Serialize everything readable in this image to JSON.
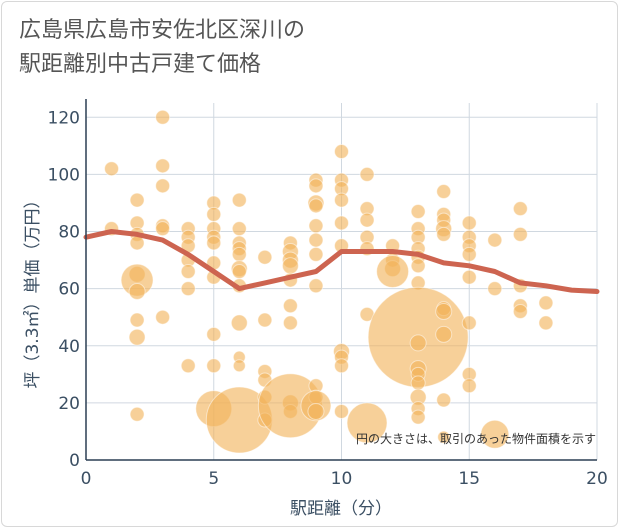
{
  "title_line1": "広島県広島市安佐北区深川の",
  "title_line2": "駅距離別中古戸建て価格",
  "chart_data": {
    "type": "scatter",
    "xlabel": "駅距離（分）",
    "ylabel": "坪（3.3㎡）単価（万円）",
    "xlim": [
      0,
      20
    ],
    "ylim": [
      0,
      125
    ],
    "xticks": [
      0,
      5,
      10,
      15,
      20
    ],
    "yticks": [
      0,
      20,
      40,
      60,
      80,
      100,
      120
    ],
    "annotation": "円の大きさは、取引のあった物件面積を示す",
    "colors": {
      "bubble": "#f2b35b",
      "trend": "#cd6450",
      "grid": "#d0d8e0"
    },
    "trend": {
      "x": [
        0,
        1,
        2,
        3,
        4,
        5,
        6,
        7,
        8,
        9,
        10,
        11,
        12,
        13,
        14,
        15,
        16,
        17,
        18,
        19,
        20
      ],
      "y": [
        78,
        80,
        79,
        77,
        72,
        66,
        60,
        62,
        64,
        66,
        73,
        73,
        73,
        72,
        69,
        68,
        66,
        62,
        61,
        59.5,
        59
      ]
    },
    "points": [
      {
        "x": 1,
        "y": 102,
        "r": 7
      },
      {
        "x": 1,
        "y": 81,
        "r": 7
      },
      {
        "x": 2,
        "y": 91,
        "r": 7
      },
      {
        "x": 2,
        "y": 83,
        "r": 7
      },
      {
        "x": 2,
        "y": 79,
        "r": 7
      },
      {
        "x": 2,
        "y": 76,
        "r": 7
      },
      {
        "x": 2,
        "y": 65,
        "r": 8
      },
      {
        "x": 2,
        "y": 63,
        "r": 16
      },
      {
        "x": 2,
        "y": 59,
        "r": 8
      },
      {
        "x": 2,
        "y": 49,
        "r": 7
      },
      {
        "x": 2,
        "y": 43,
        "r": 8
      },
      {
        "x": 2,
        "y": 16,
        "r": 7
      },
      {
        "x": 3,
        "y": 120,
        "r": 7
      },
      {
        "x": 3,
        "y": 103,
        "r": 7
      },
      {
        "x": 3,
        "y": 96,
        "r": 7
      },
      {
        "x": 3,
        "y": 82,
        "r": 7
      },
      {
        "x": 3,
        "y": 81,
        "r": 7
      },
      {
        "x": 3,
        "y": 50,
        "r": 7
      },
      {
        "x": 4,
        "y": 81,
        "r": 7
      },
      {
        "x": 4,
        "y": 78,
        "r": 7
      },
      {
        "x": 4,
        "y": 75,
        "r": 7
      },
      {
        "x": 4,
        "y": 70,
        "r": 7
      },
      {
        "x": 4,
        "y": 66,
        "r": 7
      },
      {
        "x": 4,
        "y": 60,
        "r": 7
      },
      {
        "x": 4,
        "y": 33,
        "r": 7
      },
      {
        "x": 5,
        "y": 90,
        "r": 7
      },
      {
        "x": 5,
        "y": 86,
        "r": 7
      },
      {
        "x": 5,
        "y": 81,
        "r": 7
      },
      {
        "x": 5,
        "y": 78,
        "r": 7
      },
      {
        "x": 5,
        "y": 76,
        "r": 7
      },
      {
        "x": 5,
        "y": 69,
        "r": 7
      },
      {
        "x": 5,
        "y": 64,
        "r": 7
      },
      {
        "x": 5,
        "y": 44,
        "r": 7
      },
      {
        "x": 5,
        "y": 33,
        "r": 7
      },
      {
        "x": 5,
        "y": 18,
        "r": 18
      },
      {
        "x": 6,
        "y": 91,
        "r": 7
      },
      {
        "x": 6,
        "y": 81,
        "r": 7
      },
      {
        "x": 6,
        "y": 76,
        "r": 7
      },
      {
        "x": 6,
        "y": 74,
        "r": 7
      },
      {
        "x": 6,
        "y": 72,
        "r": 7
      },
      {
        "x": 6,
        "y": 67,
        "r": 8
      },
      {
        "x": 6,
        "y": 66,
        "r": 7
      },
      {
        "x": 6,
        "y": 61,
        "r": 7
      },
      {
        "x": 6,
        "y": 48,
        "r": 8
      },
      {
        "x": 6,
        "y": 36,
        "r": 6
      },
      {
        "x": 6,
        "y": 33,
        "r": 6
      },
      {
        "x": 6,
        "y": 14,
        "r": 33
      },
      {
        "x": 7,
        "y": 71,
        "r": 7
      },
      {
        "x": 7,
        "y": 49,
        "r": 7
      },
      {
        "x": 7,
        "y": 31,
        "r": 7
      },
      {
        "x": 7,
        "y": 28,
        "r": 7
      },
      {
        "x": 7,
        "y": 22,
        "r": 7
      },
      {
        "x": 7,
        "y": 14,
        "r": 7
      },
      {
        "x": 8,
        "y": 76,
        "r": 7
      },
      {
        "x": 8,
        "y": 73,
        "r": 8
      },
      {
        "x": 8,
        "y": 70,
        "r": 8
      },
      {
        "x": 8,
        "y": 68,
        "r": 8
      },
      {
        "x": 8,
        "y": 63,
        "r": 7
      },
      {
        "x": 8,
        "y": 54,
        "r": 7
      },
      {
        "x": 8,
        "y": 48,
        "r": 7
      },
      {
        "x": 8,
        "y": 20,
        "r": 8
      },
      {
        "x": 8,
        "y": 17,
        "r": 7
      },
      {
        "x": 8,
        "y": 19,
        "r": 32
      },
      {
        "x": 9,
        "y": 98,
        "r": 7
      },
      {
        "x": 9,
        "y": 96,
        "r": 7
      },
      {
        "x": 9,
        "y": 90,
        "r": 8
      },
      {
        "x": 9,
        "y": 89,
        "r": 7
      },
      {
        "x": 9,
        "y": 82,
        "r": 7
      },
      {
        "x": 9,
        "y": 77,
        "r": 7
      },
      {
        "x": 9,
        "y": 72,
        "r": 7
      },
      {
        "x": 9,
        "y": 61,
        "r": 7
      },
      {
        "x": 9,
        "y": 26,
        "r": 7
      },
      {
        "x": 9,
        "y": 22,
        "r": 7
      },
      {
        "x": 9,
        "y": 19,
        "r": 15
      },
      {
        "x": 9,
        "y": 17,
        "r": 8
      },
      {
        "x": 10,
        "y": 108,
        "r": 7
      },
      {
        "x": 10,
        "y": 98,
        "r": 7
      },
      {
        "x": 10,
        "y": 95,
        "r": 7
      },
      {
        "x": 10,
        "y": 91,
        "r": 7
      },
      {
        "x": 10,
        "y": 83,
        "r": 7
      },
      {
        "x": 10,
        "y": 75,
        "r": 7
      },
      {
        "x": 10,
        "y": 38,
        "r": 8
      },
      {
        "x": 10,
        "y": 36,
        "r": 7
      },
      {
        "x": 10,
        "y": 33,
        "r": 7
      },
      {
        "x": 10,
        "y": 17,
        "r": 7
      },
      {
        "x": 11,
        "y": 100,
        "r": 7
      },
      {
        "x": 11,
        "y": 88,
        "r": 7
      },
      {
        "x": 11,
        "y": 84,
        "r": 7
      },
      {
        "x": 11,
        "y": 78,
        "r": 7
      },
      {
        "x": 11,
        "y": 74,
        "r": 7
      },
      {
        "x": 11,
        "y": 51,
        "r": 7
      },
      {
        "x": 11,
        "y": 13,
        "r": 20
      },
      {
        "x": 12,
        "y": 75,
        "r": 7
      },
      {
        "x": 12,
        "y": 70,
        "r": 7
      },
      {
        "x": 12,
        "y": 67,
        "r": 8
      },
      {
        "x": 12,
        "y": 66,
        "r": 16
      },
      {
        "x": 13,
        "y": 87,
        "r": 7
      },
      {
        "x": 13,
        "y": 81,
        "r": 7
      },
      {
        "x": 13,
        "y": 78,
        "r": 7
      },
      {
        "x": 13,
        "y": 74,
        "r": 7
      },
      {
        "x": 13,
        "y": 71,
        "r": 7
      },
      {
        "x": 13,
        "y": 68,
        "r": 7
      },
      {
        "x": 13,
        "y": 62,
        "r": 7
      },
      {
        "x": 13,
        "y": 43,
        "r": 50
      },
      {
        "x": 13,
        "y": 41,
        "r": 8
      },
      {
        "x": 13,
        "y": 32,
        "r": 8
      },
      {
        "x": 13,
        "y": 30,
        "r": 7
      },
      {
        "x": 13,
        "y": 27,
        "r": 7
      },
      {
        "x": 13,
        "y": 22,
        "r": 8
      },
      {
        "x": 13,
        "y": 18,
        "r": 7
      },
      {
        "x": 13,
        "y": 15,
        "r": 7
      },
      {
        "x": 14,
        "y": 94,
        "r": 7
      },
      {
        "x": 14,
        "y": 86,
        "r": 7
      },
      {
        "x": 14,
        "y": 84,
        "r": 7
      },
      {
        "x": 14,
        "y": 81,
        "r": 8
      },
      {
        "x": 14,
        "y": 79,
        "r": 7
      },
      {
        "x": 14,
        "y": 53,
        "r": 7
      },
      {
        "x": 14,
        "y": 52,
        "r": 8
      },
      {
        "x": 14,
        "y": 44,
        "r": 8
      },
      {
        "x": 14,
        "y": 21,
        "r": 7
      },
      {
        "x": 14,
        "y": 8,
        "r": 6
      },
      {
        "x": 15,
        "y": 83,
        "r": 7
      },
      {
        "x": 15,
        "y": 78,
        "r": 7
      },
      {
        "x": 15,
        "y": 75,
        "r": 7
      },
      {
        "x": 15,
        "y": 72,
        "r": 7
      },
      {
        "x": 15,
        "y": 64,
        "r": 7
      },
      {
        "x": 15,
        "y": 48,
        "r": 7
      },
      {
        "x": 15,
        "y": 30,
        "r": 7
      },
      {
        "x": 15,
        "y": 26,
        "r": 7
      },
      {
        "x": 16,
        "y": 77,
        "r": 7
      },
      {
        "x": 16,
        "y": 60,
        "r": 7
      },
      {
        "x": 16,
        "y": 9,
        "r": 14
      },
      {
        "x": 17,
        "y": 88,
        "r": 7
      },
      {
        "x": 17,
        "y": 79,
        "r": 7
      },
      {
        "x": 17,
        "y": 61,
        "r": 7
      },
      {
        "x": 17,
        "y": 54,
        "r": 7
      },
      {
        "x": 17,
        "y": 52,
        "r": 7
      },
      {
        "x": 18,
        "y": 55,
        "r": 7
      },
      {
        "x": 18,
        "y": 48,
        "r": 7
      }
    ]
  }
}
